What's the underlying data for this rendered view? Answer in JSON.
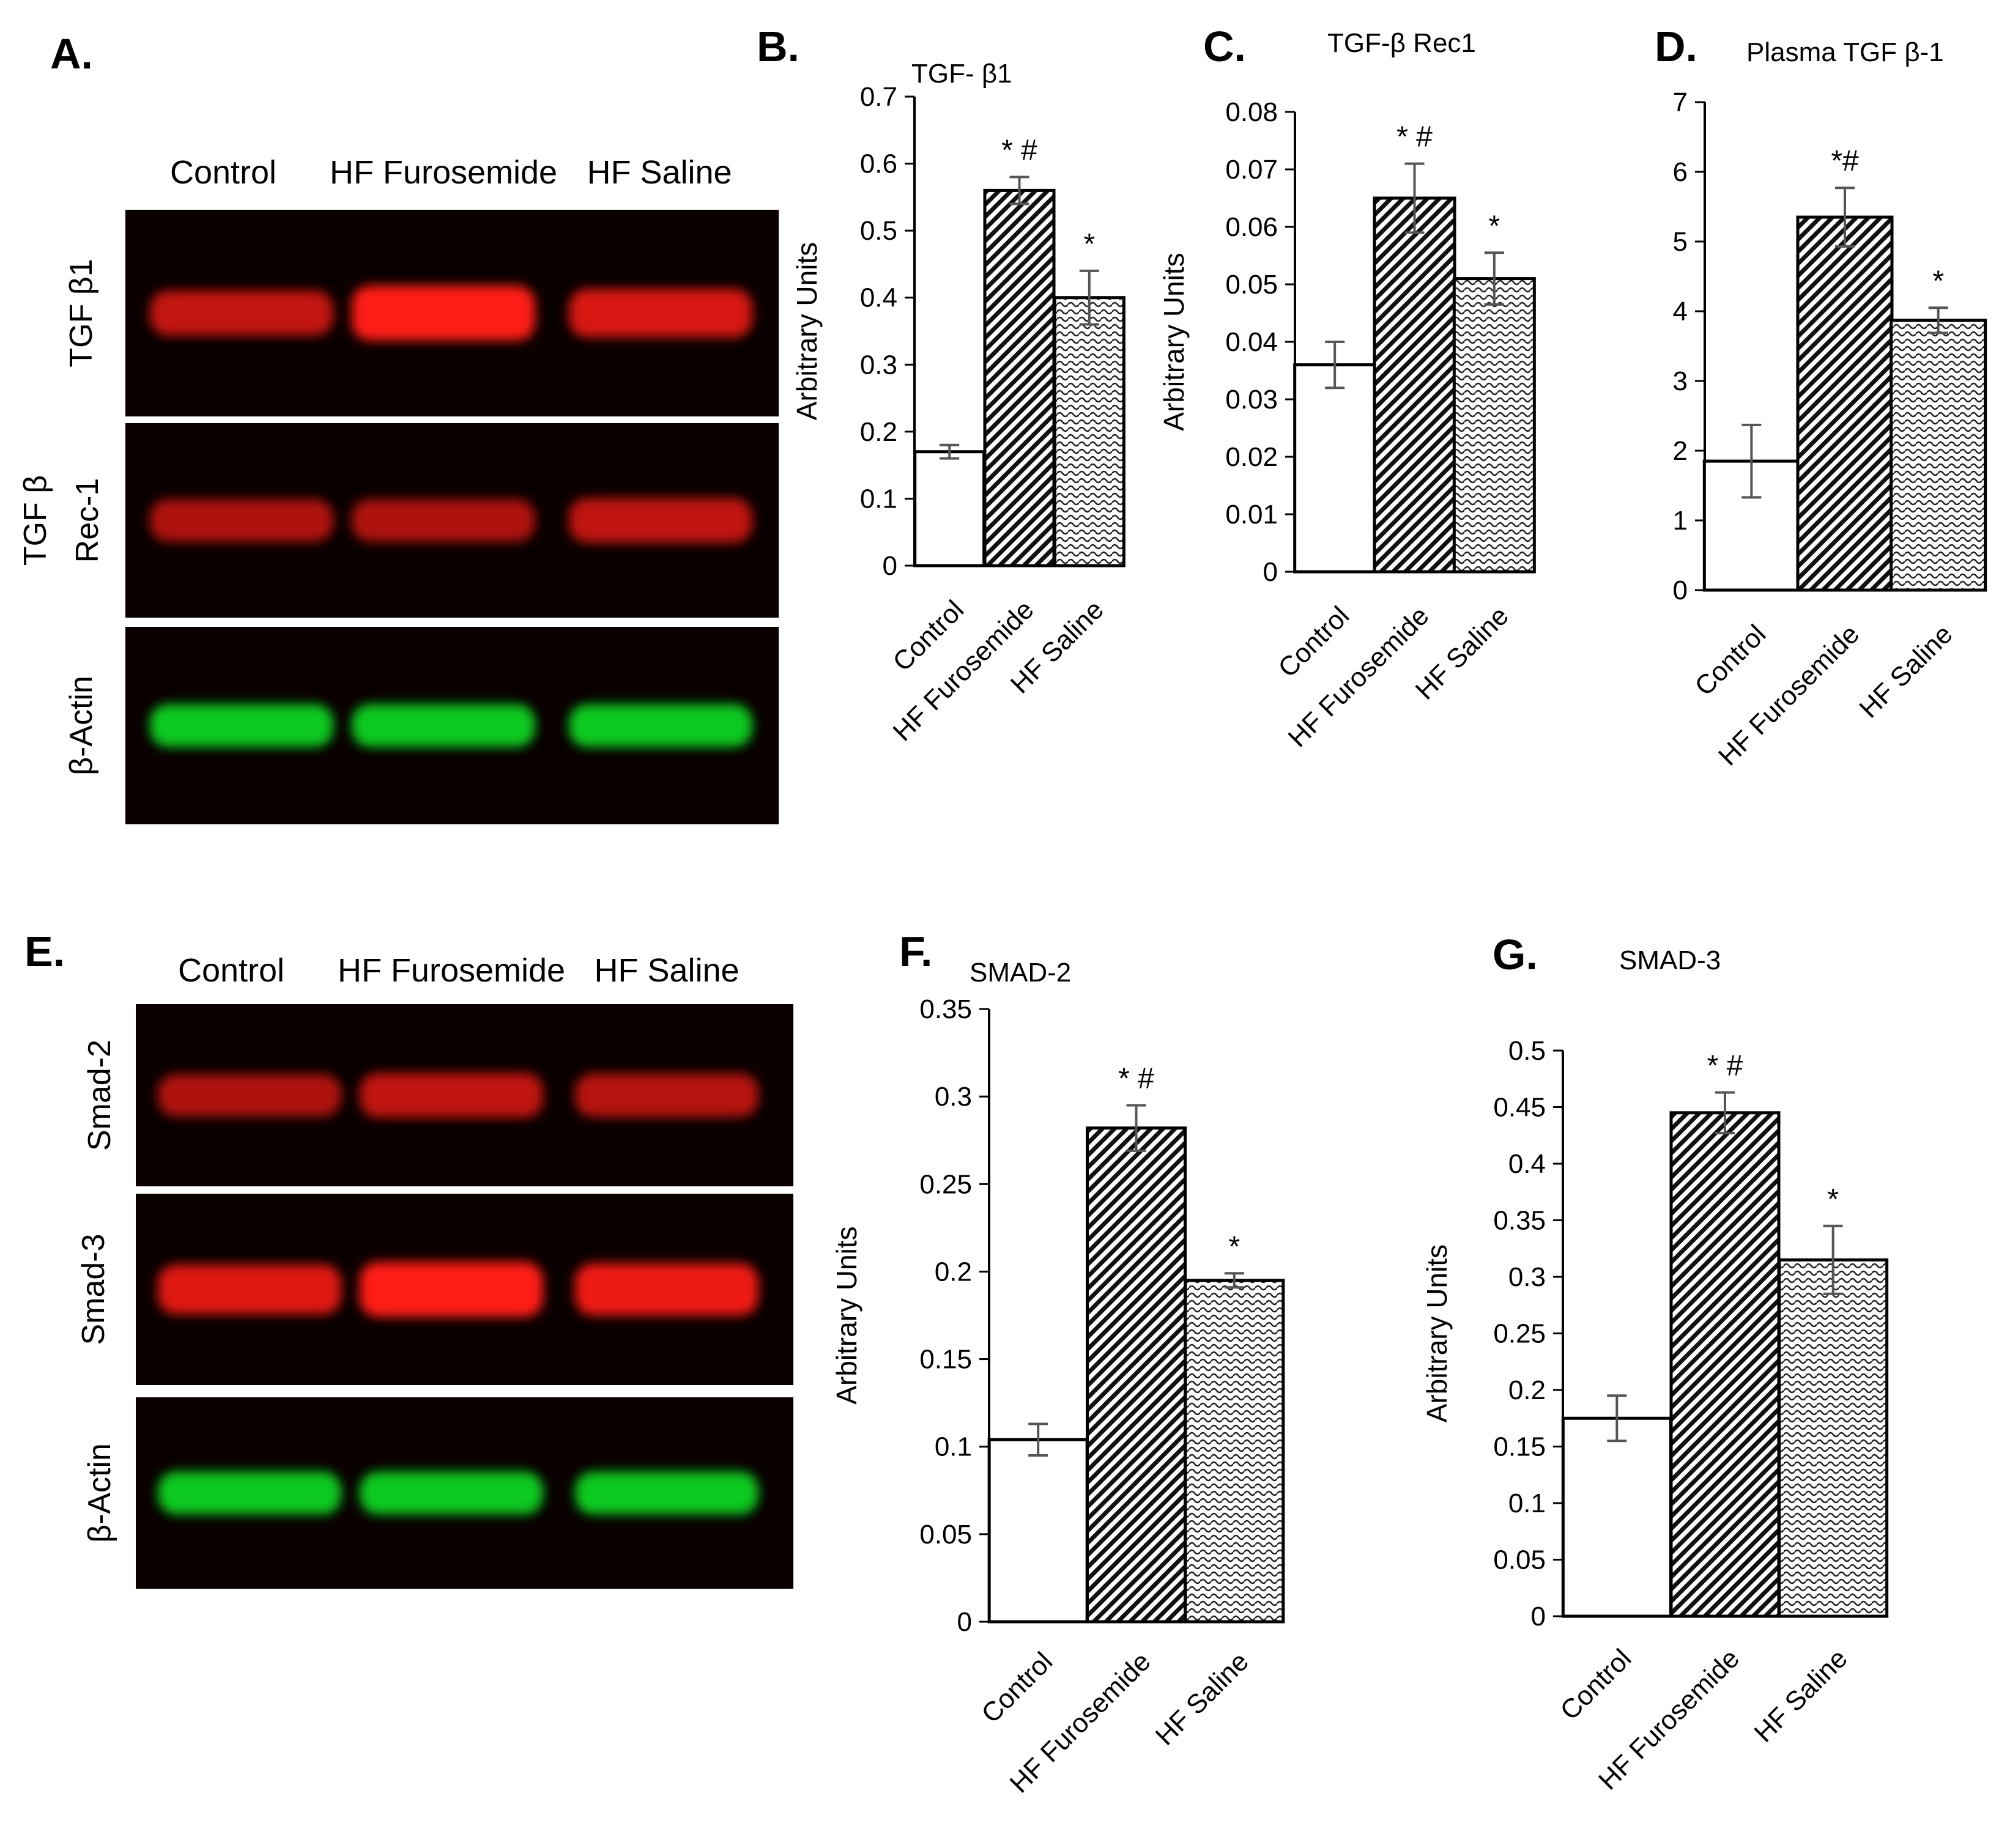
{
  "lane_labels": [
    "Control",
    "HF Furosemide",
    "HF Saline"
  ],
  "blot_colors": {
    "red": "#ff1e12",
    "green": "#10d020",
    "background": "#0a0000"
  },
  "blot_A": {
    "letter": "A.",
    "rows": [
      {
        "label_lines": [
          "TGF β1"
        ],
        "color": "red",
        "intensity": [
          0.62,
          1.0,
          0.75
        ]
      },
      {
        "label_lines": [
          "TGF β",
          "Rec-1"
        ],
        "color": "red",
        "intensity": [
          0.5,
          0.5,
          0.6
        ]
      },
      {
        "label_lines": [
          "β-Actin"
        ],
        "color": "green",
        "intensity": [
          0.95,
          0.95,
          0.95
        ]
      }
    ]
  },
  "blot_E": {
    "letter": "E.",
    "rows": [
      {
        "label_lines": [
          "Smad-2"
        ],
        "color": "red",
        "intensity": [
          0.5,
          0.6,
          0.55
        ]
      },
      {
        "label_lines": [
          "Smad-3"
        ],
        "color": "red",
        "intensity": [
          0.8,
          1.0,
          0.9
        ]
      },
      {
        "label_lines": [
          "β-Actin"
        ],
        "color": "green",
        "intensity": [
          0.95,
          0.95,
          0.95
        ]
      }
    ]
  },
  "chart_data": [
    {
      "id": "B",
      "letter": "B.",
      "type": "bar",
      "title": "TGF- β1",
      "ylabel": "Arbitrary Units",
      "categories": [
        "Control",
        "HF Furosemide",
        "HF Saline"
      ],
      "values": [
        0.17,
        0.56,
        0.4
      ],
      "errors": [
        0.01,
        0.02,
        0.04
      ],
      "annotations": [
        "",
        "* #",
        "*"
      ],
      "ylim": [
        0,
        0.7
      ],
      "yticks": [
        0,
        0.1,
        0.2,
        0.3,
        0.4,
        0.5,
        0.6,
        0.7
      ],
      "yticklabels": [
        "0",
        "0.1",
        "0.2",
        "0.3",
        "0.4",
        "0.5",
        "0.6",
        "0.7"
      ]
    },
    {
      "id": "C",
      "letter": "C.",
      "type": "bar",
      "title": "TGF-β Rec1",
      "ylabel": "Arbitrary Units",
      "categories": [
        "Control",
        "HF Furosemide",
        "HF Saline"
      ],
      "values": [
        0.036,
        0.065,
        0.051
      ],
      "errors": [
        0.004,
        0.006,
        0.0045
      ],
      "annotations": [
        "",
        "* #",
        "*"
      ],
      "ylim": [
        0,
        0.08
      ],
      "yticks": [
        0,
        0.01,
        0.02,
        0.03,
        0.04,
        0.05,
        0.06,
        0.07,
        0.08
      ],
      "yticklabels": [
        "0",
        "0.01",
        "0.02",
        "0.03",
        "0.04",
        "0.05",
        "0.06",
        "0.07",
        "0.08"
      ]
    },
    {
      "id": "D",
      "letter": "D.",
      "type": "bar",
      "title": "Plasma TGF β-1",
      "ylabel": "",
      "categories": [
        "Control",
        "HF Furosemide",
        "HF Saline"
      ],
      "values": [
        1.85,
        5.35,
        3.87
      ],
      "errors": [
        0.52,
        0.42,
        0.18
      ],
      "annotations": [
        "",
        "*#",
        "*"
      ],
      "ylim": [
        0,
        7
      ],
      "yticks": [
        0,
        1,
        2,
        3,
        4,
        5,
        6,
        7
      ],
      "yticklabels": [
        "0",
        "1",
        "2",
        "3",
        "4",
        "5",
        "6",
        "7"
      ]
    },
    {
      "id": "F",
      "letter": "F.",
      "type": "bar",
      "title": "SMAD-2",
      "ylabel": "Arbitrary Units",
      "categories": [
        "Control",
        "HF Furosemide",
        "HF Saline"
      ],
      "values": [
        0.104,
        0.282,
        0.195
      ],
      "errors": [
        0.009,
        0.013,
        0.004
      ],
      "annotations": [
        "",
        "* #",
        "*"
      ],
      "ylim": [
        0,
        0.35
      ],
      "yticks": [
        0,
        0.05,
        0.1,
        0.15,
        0.2,
        0.25,
        0.3,
        0.35
      ],
      "yticklabels": [
        "0",
        "0.05",
        "0.1",
        "0.15",
        "0.2",
        "0.25",
        "0.3",
        "0.35"
      ]
    },
    {
      "id": "G",
      "letter": "G.",
      "type": "bar",
      "title": "SMAD-3",
      "ylabel": "Arbitrary Units",
      "categories": [
        "Control",
        "HF Furosemide",
        "HF Saline"
      ],
      "values": [
        0.175,
        0.445,
        0.315
      ],
      "errors": [
        0.02,
        0.018,
        0.03
      ],
      "annotations": [
        "",
        "* #",
        "*"
      ],
      "ylim": [
        0,
        0.5
      ],
      "yticks": [
        0,
        0.05,
        0.1,
        0.15,
        0.2,
        0.25,
        0.3,
        0.35,
        0.4,
        0.45,
        0.5
      ],
      "yticklabels": [
        "0",
        "0.05",
        "0.1",
        "0.15",
        "0.2",
        "0.25",
        "0.3",
        "0.35",
        "0.4",
        "0.45",
        "0.5"
      ]
    }
  ]
}
